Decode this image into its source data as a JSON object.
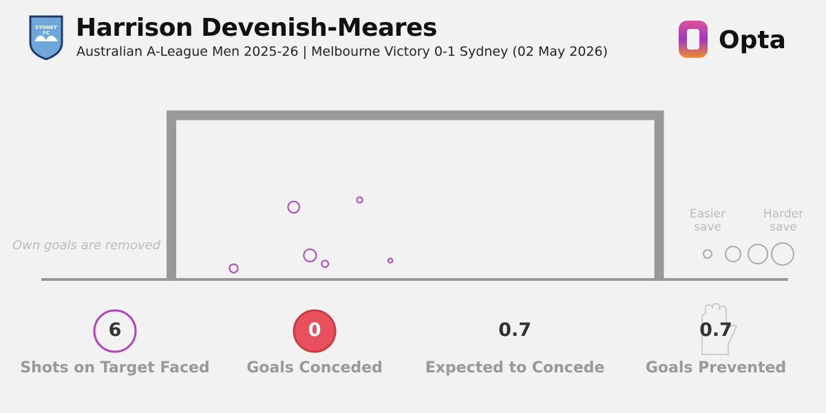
{
  "header": {
    "title": "Harrison Devenish-Meares",
    "subtitle": "Australian A-League Men 2025-26 | Melbourne Victory 0-1 Sydney (02 May 2026)",
    "badge": "SYDNEY FC",
    "brand": "Opta"
  },
  "note": "Own goals are removed",
  "key": {
    "easier": "Easier save",
    "harder": "Harder save"
  },
  "chart_data": {
    "type": "scatter",
    "xlim": [
      -3.66,
      3.66
    ],
    "ylim": [
      0,
      2.44
    ],
    "x": [
      -1.86,
      -0.85,
      -1.61,
      -1.38,
      -2.78,
      -0.38
    ],
    "y": [
      1.11,
      1.22,
      0.37,
      0.24,
      0.17,
      0.29
    ],
    "sizes": [
      0.2,
      0.05,
      0.24,
      0.07,
      0.11,
      0.03
    ],
    "color": "#b444bd"
  },
  "stats": [
    {
      "value": 6,
      "label": "Shots on Target Faced"
    },
    {
      "value": 0,
      "label": "Goals Conceded"
    },
    {
      "value": 0.7,
      "label": "Expected to Concede"
    },
    {
      "value": 0.7,
      "label": "Goals Prevented"
    }
  ]
}
